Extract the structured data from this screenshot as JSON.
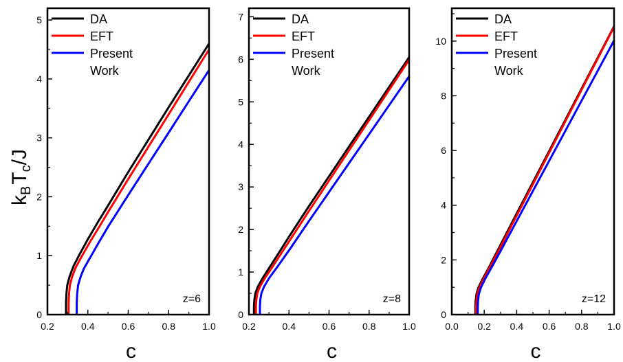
{
  "ylabel": {
    "base": "k",
    "sub1": "B",
    "mid": "T",
    "sub2": "c",
    "tail": "/J"
  },
  "chart_data": [
    {
      "type": "line",
      "xlabel": "c",
      "xlim": [
        0.2,
        1.0
      ],
      "ylim": [
        0,
        5.2
      ],
      "xticks": [
        0.2,
        0.4,
        0.6,
        0.8,
        1.0
      ],
      "xtick_labels": [
        "0.2",
        "0.4",
        "0.6",
        "0.8",
        "1.0"
      ],
      "yticks": [
        0,
        1,
        2,
        3,
        4,
        5
      ],
      "ytick_labels": [
        "0",
        "1",
        "2",
        "3",
        "4",
        "5"
      ],
      "annotation": "z=6",
      "legend": {
        "position": "top-left",
        "entries": [
          "DA",
          "EFT",
          "Present",
          "Work"
        ]
      },
      "series": [
        {
          "name": "DA",
          "color": "#000000",
          "x": [
            0.292,
            0.292,
            0.294,
            0.298,
            0.31,
            0.33,
            0.36,
            0.4,
            0.45,
            0.5,
            0.6,
            0.7,
            0.8,
            0.9,
            1.0
          ],
          "y": [
            0,
            0.2,
            0.35,
            0.5,
            0.65,
            0.83,
            1.03,
            1.28,
            1.57,
            1.85,
            2.42,
            2.97,
            3.52,
            4.06,
            4.6
          ]
        },
        {
          "name": "EFT",
          "color": "#ff0000",
          "x": [
            0.305,
            0.305,
            0.307,
            0.311,
            0.322,
            0.34,
            0.37,
            0.41,
            0.46,
            0.5,
            0.6,
            0.7,
            0.8,
            0.9,
            1.0
          ],
          "y": [
            0,
            0.2,
            0.35,
            0.5,
            0.64,
            0.8,
            0.99,
            1.23,
            1.51,
            1.74,
            2.3,
            2.85,
            3.4,
            3.95,
            4.5
          ]
        },
        {
          "name": "Present Work",
          "color": "#0000ff",
          "x": [
            0.345,
            0.345,
            0.347,
            0.352,
            0.364,
            0.38,
            0.41,
            0.45,
            0.5,
            0.6,
            0.7,
            0.8,
            0.9,
            1.0
          ],
          "y": [
            0,
            0.2,
            0.35,
            0.5,
            0.64,
            0.78,
            0.96,
            1.2,
            1.49,
            2.03,
            2.56,
            3.09,
            3.62,
            4.15
          ]
        }
      ]
    },
    {
      "type": "line",
      "xlabel": "c",
      "xlim": [
        0.2,
        1.0
      ],
      "ylim": [
        0,
        7.2
      ],
      "xticks": [
        0.2,
        0.4,
        0.6,
        0.8,
        1.0
      ],
      "xtick_labels": [
        "0.2",
        "0.4",
        "0.6",
        "0.8",
        "1.0"
      ],
      "yticks": [
        0,
        1,
        2,
        3,
        4,
        5,
        6,
        7
      ],
      "ytick_labels": [
        "0",
        "1",
        "2",
        "3",
        "4",
        "5",
        "6",
        "7"
      ],
      "annotation": "z=8",
      "legend": {
        "position": "top-left",
        "entries": [
          "DA",
          "EFT",
          "Present",
          "Work"
        ]
      },
      "series": [
        {
          "name": "DA",
          "color": "#000000",
          "x": [
            0.225,
            0.225,
            0.227,
            0.232,
            0.245,
            0.27,
            0.31,
            0.36,
            0.4,
            0.5,
            0.6,
            0.7,
            0.8,
            0.9,
            1.0
          ],
          "y": [
            0,
            0.2,
            0.35,
            0.5,
            0.66,
            0.87,
            1.16,
            1.53,
            1.83,
            2.55,
            3.25,
            3.95,
            4.65,
            5.35,
            6.05
          ]
        },
        {
          "name": "EFT",
          "color": "#ff0000",
          "x": [
            0.235,
            0.235,
            0.237,
            0.242,
            0.255,
            0.28,
            0.32,
            0.37,
            0.4,
            0.5,
            0.6,
            0.7,
            0.8,
            0.9,
            1.0
          ],
          "y": [
            0,
            0.2,
            0.35,
            0.5,
            0.66,
            0.86,
            1.14,
            1.5,
            1.72,
            2.44,
            3.15,
            3.86,
            4.57,
            5.28,
            5.99
          ]
        },
        {
          "name": "Present Work",
          "color": "#0000ff",
          "x": [
            0.255,
            0.255,
            0.257,
            0.262,
            0.276,
            0.3,
            0.34,
            0.39,
            0.4,
            0.5,
            0.6,
            0.7,
            0.8,
            0.9,
            1.0
          ],
          "y": [
            0,
            0.2,
            0.35,
            0.5,
            0.66,
            0.85,
            1.11,
            1.44,
            1.51,
            2.2,
            2.88,
            3.56,
            4.24,
            4.92,
            5.6
          ]
        }
      ]
    },
    {
      "type": "line",
      "xlabel": "c",
      "xlim": [
        0.0,
        1.0
      ],
      "ylim": [
        0,
        11.2
      ],
      "xticks": [
        0.0,
        0.2,
        0.4,
        0.6,
        0.8,
        1.0
      ],
      "xtick_labels": [
        "0.0",
        "0.2",
        "0.4",
        "0.6",
        "0.8",
        "1.0"
      ],
      "yticks": [
        0,
        2,
        4,
        6,
        8,
        10
      ],
      "ytick_labels": [
        "0",
        "2",
        "4",
        "6",
        "8",
        "10"
      ],
      "annotation": "z=12",
      "legend": {
        "position": "top-left",
        "entries": [
          "DA",
          "EFT",
          "Present",
          "Work"
        ]
      },
      "series": [
        {
          "name": "DA",
          "color": "#000000",
          "x": [
            0.145,
            0.145,
            0.147,
            0.152,
            0.165,
            0.19,
            0.23,
            0.3,
            0.4,
            0.5,
            0.6,
            0.7,
            0.8,
            0.9,
            1.0
          ],
          "y": [
            0,
            0.3,
            0.5,
            0.75,
            1.0,
            1.3,
            1.74,
            2.55,
            3.7,
            4.84,
            5.98,
            7.12,
            8.26,
            9.4,
            10.54
          ]
        },
        {
          "name": "EFT",
          "color": "#ff0000",
          "x": [
            0.15,
            0.15,
            0.152,
            0.157,
            0.17,
            0.195,
            0.235,
            0.3,
            0.4,
            0.5,
            0.6,
            0.7,
            0.8,
            0.9,
            1.0
          ],
          "y": [
            0,
            0.3,
            0.5,
            0.75,
            1.0,
            1.3,
            1.74,
            2.47,
            3.62,
            4.77,
            5.92,
            7.07,
            8.22,
            9.37,
            10.52
          ]
        },
        {
          "name": "Present Work",
          "color": "#0000ff",
          "x": [
            0.16,
            0.16,
            0.162,
            0.167,
            0.18,
            0.205,
            0.245,
            0.3,
            0.4,
            0.5,
            0.6,
            0.7,
            0.8,
            0.9,
            1.0
          ],
          "y": [
            0,
            0.3,
            0.5,
            0.75,
            1.0,
            1.3,
            1.72,
            2.32,
            3.42,
            4.52,
            5.62,
            6.72,
            7.82,
            8.92,
            10.02
          ]
        }
      ]
    }
  ]
}
